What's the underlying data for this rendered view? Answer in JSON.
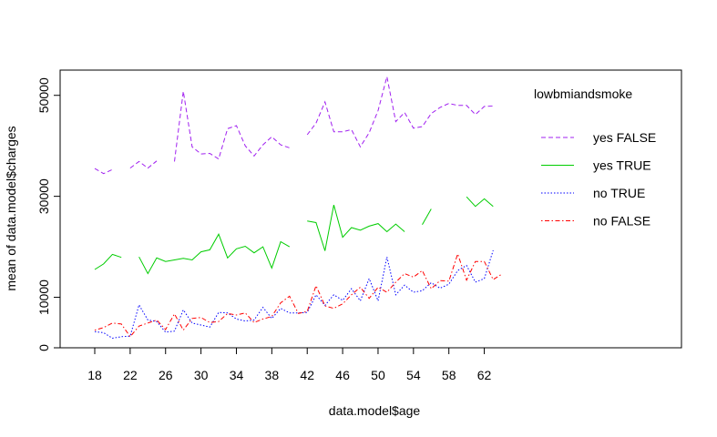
{
  "chart_data": {
    "type": "line",
    "xlabel": "data.model$age",
    "ylabel": "mean of  data.model$charges",
    "xlim": [
      18,
      64
    ],
    "ylim": [
      0,
      55000
    ],
    "x_ticks": [
      "18",
      "22",
      "26",
      "30",
      "34",
      "38",
      "42",
      "46",
      "50",
      "54",
      "58",
      "62"
    ],
    "y_ticks": [
      "0",
      "10000",
      "30000",
      "50000"
    ],
    "legend": {
      "title": "lowbmiandsmoke",
      "placement": "right"
    },
    "categories": [
      18,
      19,
      20,
      21,
      22,
      23,
      24,
      25,
      26,
      27,
      28,
      29,
      30,
      31,
      32,
      33,
      34,
      35,
      36,
      37,
      38,
      39,
      40,
      41,
      42,
      43,
      44,
      45,
      46,
      47,
      48,
      49,
      50,
      51,
      52,
      53,
      54,
      55,
      56,
      57,
      58,
      59,
      60,
      61,
      62,
      63,
      64
    ],
    "series": [
      {
        "name": "yes FALSE",
        "color": "#a020f0",
        "dash": "dashed",
        "values": [
          35500,
          34500,
          35300,
          null,
          35600,
          36900,
          35600,
          37000,
          null,
          36900,
          50800,
          39800,
          38400,
          38500,
          37400,
          43400,
          44000,
          40000,
          38000,
          40200,
          41800,
          40200,
          39600,
          null,
          42200,
          44500,
          48700,
          42800,
          42800,
          43200,
          39800,
          42600,
          47000,
          53700,
          44800,
          46600,
          43500,
          43800,
          46400,
          47600,
          48400,
          48000,
          48000,
          46200,
          47800,
          47900,
          null
        ]
      },
      {
        "name": "yes TRUE",
        "color": "#00cd00",
        "dash": "solid",
        "values": [
          15500,
          16600,
          18500,
          17900,
          null,
          18000,
          14700,
          17800,
          17100,
          17400,
          17700,
          17400,
          19000,
          19400,
          22500,
          17800,
          19600,
          20100,
          18800,
          20000,
          15800,
          21000,
          20000,
          null,
          25100,
          24800,
          19200,
          28300,
          21900,
          23800,
          23300,
          24100,
          24600,
          23000,
          24500,
          23000,
          null,
          24400,
          27500,
          null,
          null,
          null,
          29900,
          28000,
          29500,
          28000,
          null
        ]
      },
      {
        "name": "no TRUE",
        "color": "#0000ff",
        "dash": "dotted",
        "values": [
          3200,
          3000,
          1900,
          2200,
          2300,
          8500,
          5500,
          5200,
          3100,
          3300,
          7500,
          4900,
          4500,
          4100,
          7000,
          6900,
          5700,
          5300,
          5500,
          8000,
          5800,
          7800,
          6900,
          6900,
          7000,
          10500,
          8400,
          10500,
          9400,
          11700,
          9300,
          13700,
          9300,
          18000,
          10500,
          12400,
          11000,
          11300,
          12900,
          11800,
          12600,
          15300,
          16300,
          13000,
          13700,
          19300,
          null
        ]
      },
      {
        "name": "no FALSE",
        "color": "#ff0000",
        "dash": "dotdash",
        "values": [
          3500,
          4000,
          4900,
          4700,
          2200,
          4300,
          4900,
          5500,
          3600,
          6700,
          3500,
          5800,
          6000,
          5000,
          5200,
          6800,
          6500,
          6900,
          5000,
          5700,
          6200,
          8900,
          10200,
          6800,
          7200,
          12300,
          8300,
          7800,
          8700,
          10500,
          12000,
          9800,
          12000,
          11000,
          13000,
          14700,
          14000,
          15300,
          11700,
          13300,
          13200,
          18600,
          13400,
          17100,
          17100,
          13500,
          14600
        ]
      }
    ]
  }
}
